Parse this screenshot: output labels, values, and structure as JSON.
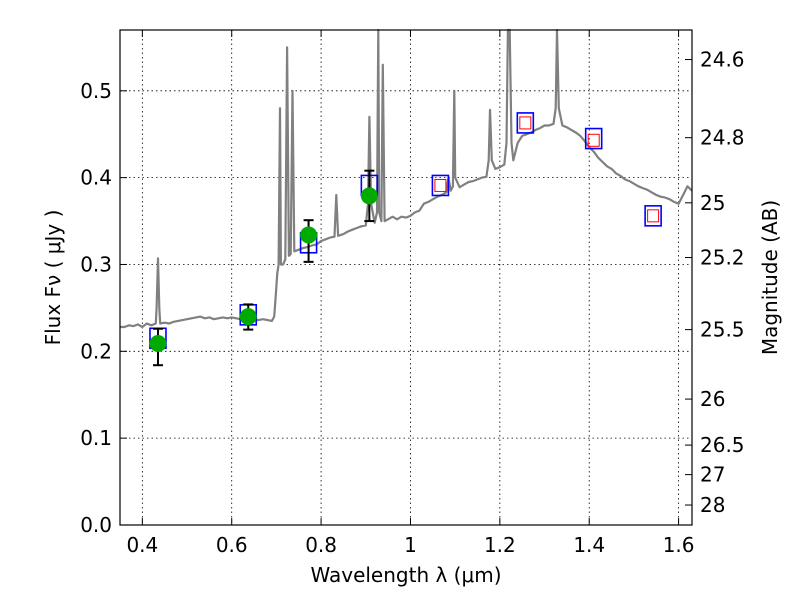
{
  "chart_data": {
    "type": "line",
    "xlabel": "Wavelength  λ (μm)",
    "ylabel": "Flux  Fν  ( μJy )",
    "ylabel_right": "Magnitude (AB)",
    "xlim": [
      0.35,
      1.63
    ],
    "ylim": [
      0.0,
      0.57
    ],
    "grid": true,
    "x_ticks": [
      0.4,
      0.6,
      0.8,
      1.0,
      1.2,
      1.4,
      1.6
    ],
    "x_tick_labels": [
      "0.4",
      "0.6",
      "0.8",
      "1",
      "1.2",
      "1.4",
      "1.6"
    ],
    "y_ticks": [
      0.0,
      0.1,
      0.2,
      0.3,
      0.4,
      0.5
    ],
    "y_tick_labels": [
      "0.0",
      "0.1",
      "0.2",
      "0.3",
      "0.4",
      "0.5"
    ],
    "right_ticks": [
      {
        "flux": 0.536,
        "label": "24.6"
      },
      {
        "flux": 0.446,
        "label": "24.8"
      },
      {
        "flux": 0.371,
        "label": "25"
      },
      {
        "flux": 0.308,
        "label": "25.2"
      },
      {
        "flux": 0.225,
        "label": "25.5"
      },
      {
        "flux": 0.145,
        "label": "26"
      },
      {
        "flux": 0.092,
        "label": "26.5"
      },
      {
        "flux": 0.058,
        "label": "27"
      },
      {
        "flux": 0.023,
        "label": "28"
      }
    ],
    "spectrum": {
      "color": "#808080",
      "points": [
        [
          0.35,
          0.228
        ],
        [
          0.36,
          0.228
        ],
        [
          0.37,
          0.23
        ],
        [
          0.38,
          0.229
        ],
        [
          0.39,
          0.231
        ],
        [
          0.4,
          0.228
        ],
        [
          0.41,
          0.232
        ],
        [
          0.42,
          0.23
        ],
        [
          0.43,
          0.232
        ],
        [
          0.432,
          0.25
        ],
        [
          0.435,
          0.307
        ],
        [
          0.438,
          0.25
        ],
        [
          0.44,
          0.232
        ],
        [
          0.45,
          0.233
        ],
        [
          0.46,
          0.232
        ],
        [
          0.47,
          0.234
        ],
        [
          0.48,
          0.235
        ],
        [
          0.49,
          0.236
        ],
        [
          0.5,
          0.237
        ],
        [
          0.51,
          0.238
        ],
        [
          0.52,
          0.239
        ],
        [
          0.53,
          0.24
        ],
        [
          0.54,
          0.238
        ],
        [
          0.55,
          0.239
        ],
        [
          0.56,
          0.237
        ],
        [
          0.57,
          0.238
        ],
        [
          0.58,
          0.239
        ],
        [
          0.59,
          0.238
        ],
        [
          0.6,
          0.239
        ],
        [
          0.61,
          0.238
        ],
        [
          0.62,
          0.237
        ],
        [
          0.63,
          0.238
        ],
        [
          0.64,
          0.238
        ],
        [
          0.65,
          0.237
        ],
        [
          0.66,
          0.236
        ],
        [
          0.67,
          0.237
        ],
        [
          0.68,
          0.236
        ],
        [
          0.69,
          0.235
        ],
        [
          0.695,
          0.24
        ],
        [
          0.698,
          0.26
        ],
        [
          0.702,
          0.29
        ],
        [
          0.705,
          0.3
        ],
        [
          0.708,
          0.48
        ],
        [
          0.71,
          0.3
        ],
        [
          0.715,
          0.3
        ],
        [
          0.72,
          0.306
        ],
        [
          0.724,
          0.55
        ],
        [
          0.728,
          0.31
        ],
        [
          0.732,
          0.312
        ],
        [
          0.736,
          0.5
        ],
        [
          0.74,
          0.315
        ],
        [
          0.75,
          0.317
        ],
        [
          0.76,
          0.319
        ],
        [
          0.77,
          0.32
        ],
        [
          0.78,
          0.322
        ],
        [
          0.79,
          0.323
        ],
        [
          0.8,
          0.327
        ],
        [
          0.81,
          0.329
        ],
        [
          0.82,
          0.331
        ],
        [
          0.83,
          0.332
        ],
        [
          0.834,
          0.38
        ],
        [
          0.838,
          0.333
        ],
        [
          0.85,
          0.335
        ],
        [
          0.86,
          0.338
        ],
        [
          0.87,
          0.34
        ],
        [
          0.88,
          0.342
        ],
        [
          0.89,
          0.344
        ],
        [
          0.9,
          0.345
        ],
        [
          0.905,
          0.37
        ],
        [
          0.908,
          0.47
        ],
        [
          0.912,
          0.37
        ],
        [
          0.92,
          0.348
        ],
        [
          0.925,
          0.36
        ],
        [
          0.928,
          0.57
        ],
        [
          0.93,
          0.36
        ],
        [
          0.935,
          0.35
        ],
        [
          0.938,
          0.53
        ],
        [
          0.942,
          0.35
        ],
        [
          0.95,
          0.352
        ],
        [
          0.96,
          0.355
        ],
        [
          0.97,
          0.352
        ],
        [
          0.98,
          0.355
        ],
        [
          0.99,
          0.354
        ],
        [
          1.0,
          0.356
        ],
        [
          1.01,
          0.36
        ],
        [
          1.02,
          0.362
        ],
        [
          1.03,
          0.37
        ],
        [
          1.04,
          0.372
        ],
        [
          1.05,
          0.375
        ],
        [
          1.06,
          0.378
        ],
        [
          1.07,
          0.38
        ],
        [
          1.08,
          0.383
        ],
        [
          1.085,
          0.4
        ],
        [
          1.09,
          0.385
        ],
        [
          1.095,
          0.39
        ],
        [
          1.098,
          0.5
        ],
        [
          1.1,
          0.4
        ],
        [
          1.11,
          0.389
        ],
        [
          1.12,
          0.392
        ],
        [
          1.13,
          0.395
        ],
        [
          1.14,
          0.396
        ],
        [
          1.15,
          0.398
        ],
        [
          1.16,
          0.4
        ],
        [
          1.17,
          0.401
        ],
        [
          1.175,
          0.42
        ],
        [
          1.178,
          0.478
        ],
        [
          1.182,
          0.42
        ],
        [
          1.19,
          0.41
        ],
        [
          1.2,
          0.412
        ],
        [
          1.21,
          0.415
        ],
        [
          1.215,
          0.44
        ],
        [
          1.218,
          0.57
        ],
        [
          1.222,
          0.57
        ],
        [
          1.226,
          0.44
        ],
        [
          1.23,
          0.42
        ],
        [
          1.24,
          0.44
        ],
        [
          1.25,
          0.448
        ],
        [
          1.26,
          0.45
        ],
        [
          1.27,
          0.452
        ],
        [
          1.28,
          0.455
        ],
        [
          1.29,
          0.457
        ],
        [
          1.3,
          0.46
        ],
        [
          1.31,
          0.46
        ],
        [
          1.32,
          0.462
        ],
        [
          1.325,
          0.48
        ],
        [
          1.328,
          0.57
        ],
        [
          1.332,
          0.48
        ],
        [
          1.34,
          0.46
        ],
        [
          1.35,
          0.458
        ],
        [
          1.36,
          0.455
        ],
        [
          1.37,
          0.452
        ],
        [
          1.38,
          0.448
        ],
        [
          1.39,
          0.442
        ],
        [
          1.4,
          0.435
        ],
        [
          1.41,
          0.43
        ],
        [
          1.42,
          0.423
        ],
        [
          1.43,
          0.418
        ],
        [
          1.44,
          0.413
        ],
        [
          1.45,
          0.41
        ],
        [
          1.46,
          0.405
        ],
        [
          1.47,
          0.402
        ],
        [
          1.48,
          0.398
        ],
        [
          1.49,
          0.396
        ],
        [
          1.5,
          0.393
        ],
        [
          1.51,
          0.39
        ],
        [
          1.52,
          0.388
        ],
        [
          1.53,
          0.386
        ],
        [
          1.54,
          0.383
        ],
        [
          1.55,
          0.38
        ],
        [
          1.56,
          0.378
        ],
        [
          1.57,
          0.377
        ],
        [
          1.58,
          0.375
        ],
        [
          1.59,
          0.372
        ],
        [
          1.6,
          0.37
        ],
        [
          1.61,
          0.38
        ],
        [
          1.62,
          0.39
        ],
        [
          1.63,
          0.385
        ]
      ]
    },
    "model_boxes": {
      "color": "#0000ff",
      "points": [
        [
          0.435,
          0.215
        ],
        [
          0.637,
          0.242
        ],
        [
          0.772,
          0.325
        ],
        [
          0.908,
          0.391
        ],
        [
          1.067,
          0.391
        ],
        [
          1.257,
          0.463
        ],
        [
          1.41,
          0.445
        ],
        [
          1.543,
          0.356
        ]
      ]
    },
    "upper_limit_boxes": {
      "color": "#ff0000",
      "points": [
        [
          1.067,
          0.391
        ],
        [
          1.257,
          0.463
        ],
        [
          1.41,
          0.443
        ],
        [
          1.543,
          0.356
        ]
      ]
    },
    "observed": {
      "color": "#00aa00",
      "points": [
        {
          "x": 0.435,
          "y": 0.209,
          "err_low": 0.184,
          "err_high": 0.226
        },
        {
          "x": 0.637,
          "y": 0.24,
          "err_low": 0.225,
          "err_high": 0.254
        },
        {
          "x": 0.772,
          "y": 0.334,
          "err_low": 0.303,
          "err_high": 0.351
        },
        {
          "x": 0.908,
          "y": 0.379,
          "err_low": 0.35,
          "err_high": 0.408
        }
      ]
    }
  }
}
